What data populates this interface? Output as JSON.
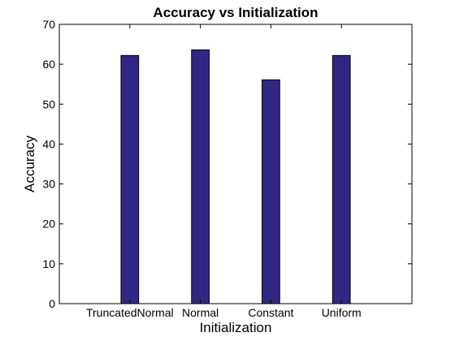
{
  "chart_data": {
    "type": "bar",
    "title": "Accuracy vs Initialization",
    "xlabel": "Initialization",
    "ylabel": "Accuracy",
    "categories": [
      "TruncatedNormal",
      "Normal",
      "Constant",
      "Uniform"
    ],
    "values": [
      62.2,
      63.6,
      56.1,
      62.2
    ],
    "ylim": [
      0,
      70
    ],
    "yticks": [
      0,
      10,
      20,
      30,
      40,
      50,
      60,
      70
    ],
    "bar_color": "#312783",
    "grid": false,
    "legend": "none"
  }
}
